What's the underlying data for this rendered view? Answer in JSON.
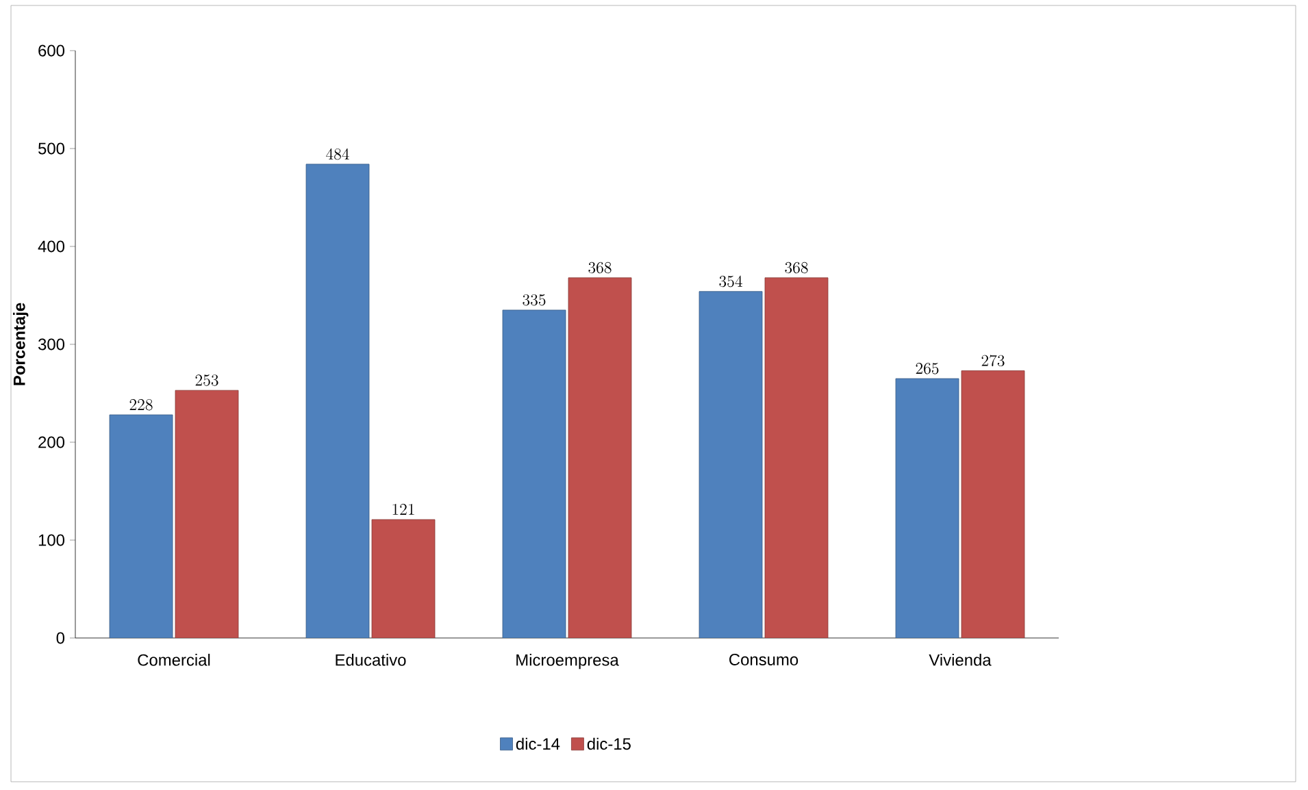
{
  "chart_data": {
    "type": "bar",
    "ylabel": "Porcentaje",
    "categories": [
      "Comercial",
      "Educativo",
      "Microempresa",
      "Consumo",
      "Vivienda"
    ],
    "series": [
      {
        "name": "dic-14",
        "color": "#4f81bd",
        "values": [
          228,
          484,
          335,
          354,
          265
        ]
      },
      {
        "name": "dic-15",
        "color": "#c0504d",
        "values": [
          253,
          121,
          368,
          368,
          273
        ]
      }
    ],
    "ylim": [
      0,
      600
    ],
    "yticks": [
      0,
      100,
      200,
      300,
      400,
      500,
      600
    ],
    "grid": false,
    "legend": "bottom",
    "data_labels": true
  }
}
